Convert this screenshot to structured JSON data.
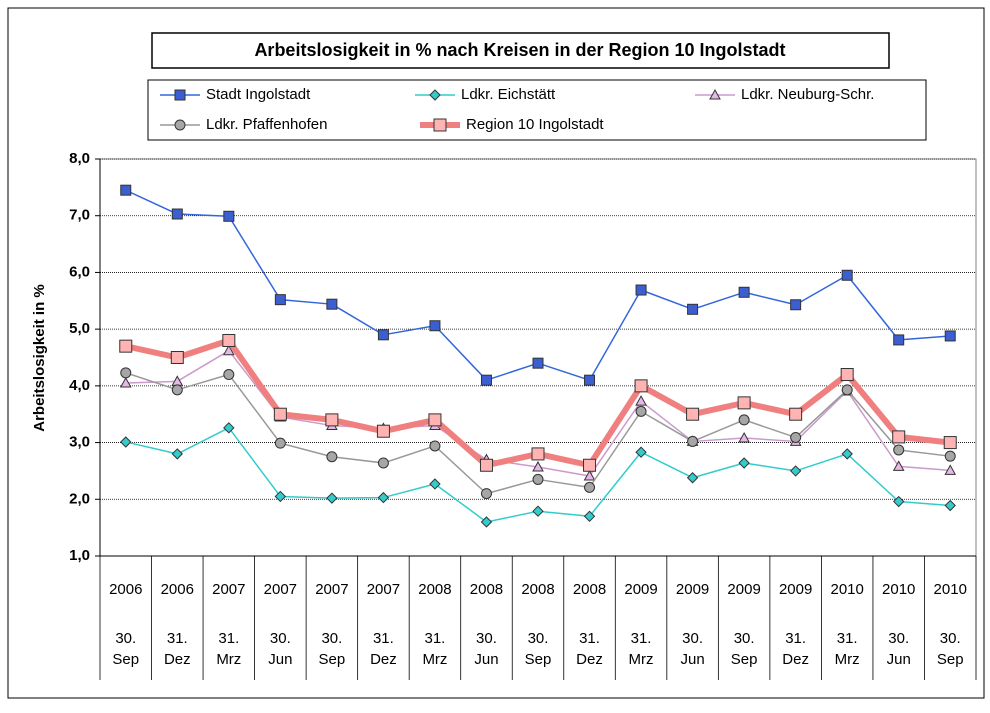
{
  "chart_data": {
    "type": "line",
    "title": "Arbeitslosigkeit in % nach Kreisen in der Region 10 Ingolstadt",
    "y_label": "Arbeitslosigkeit in %",
    "categories": [
      [
        "2006",
        "30.",
        "Sep"
      ],
      [
        "2006",
        "31.",
        "Dez"
      ],
      [
        "2007",
        "31.",
        "Mrz"
      ],
      [
        "2007",
        "30.",
        "Jun"
      ],
      [
        "2007",
        "30.",
        "Sep"
      ],
      [
        "2007",
        "31.",
        "Dez"
      ],
      [
        "2008",
        "31.",
        "Mrz"
      ],
      [
        "2008",
        "30.",
        "Jun"
      ],
      [
        "2008",
        "30.",
        "Sep"
      ],
      [
        "2008",
        "31.",
        "Dez"
      ],
      [
        "2009",
        "31.",
        "Mrz"
      ],
      [
        "2009",
        "30.",
        "Jun"
      ],
      [
        "2009",
        "30.",
        "Sep"
      ],
      [
        "2009",
        "31.",
        "Dez"
      ],
      [
        "2010",
        "31.",
        "Mrz"
      ],
      [
        "2010",
        "30.",
        "Jun"
      ],
      [
        "2010",
        "30.",
        "Sep"
      ]
    ],
    "ylim": [
      1,
      8
    ],
    "yticks": [
      {
        "value": 1,
        "label": "1,0"
      },
      {
        "value": 2,
        "label": "2,0"
      },
      {
        "value": 3,
        "label": "3,0"
      },
      {
        "value": 4,
        "label": "4,0"
      },
      {
        "value": 5,
        "label": "5,0"
      },
      {
        "value": 6,
        "label": "6,0"
      },
      {
        "value": 7,
        "label": "7,0"
      },
      {
        "value": 8,
        "label": "8,0"
      }
    ],
    "grid": true,
    "series": [
      {
        "name": "Stadt Ingolstadt",
        "color": "#3366dd",
        "marker": "square",
        "marker_fill": "#3b5fd0",
        "line_width": 1.5,
        "values": [
          7.45,
          7.03,
          6.99,
          5.52,
          5.44,
          4.9,
          5.06,
          4.1,
          4.4,
          4.1,
          5.69,
          5.35,
          5.65,
          5.43,
          5.95,
          4.81,
          4.88
        ]
      },
      {
        "name": "Ldkr. Eichstätt",
        "color": "#33cccc",
        "marker": "diamond",
        "marker_fill": "#33cccc",
        "line_width": 1.5,
        "values": [
          3.01,
          2.8,
          3.26,
          2.05,
          2.02,
          2.03,
          2.27,
          1.6,
          1.79,
          1.7,
          2.83,
          2.38,
          2.64,
          2.5,
          2.8,
          1.96,
          1.89
        ]
      },
      {
        "name": "Ldkr. Neuburg-Schr.",
        "color": "#cc99cc",
        "marker": "triangle",
        "marker_fill": "#e6b8e6",
        "line_width": 1.5,
        "values": [
          4.05,
          4.08,
          4.62,
          3.45,
          3.3,
          3.25,
          3.3,
          2.7,
          2.57,
          2.41,
          3.73,
          3.02,
          3.08,
          3.02,
          3.91,
          2.58,
          2.51
        ]
      },
      {
        "name": "Ldkr. Pfaffenhofen",
        "color": "#999999",
        "marker": "circle",
        "marker_fill": "#a6a6a6",
        "line_width": 1.5,
        "values": [
          4.23,
          3.93,
          4.2,
          2.99,
          2.75,
          2.64,
          2.94,
          2.1,
          2.35,
          2.21,
          3.55,
          3.02,
          3.4,
          3.09,
          3.93,
          2.87,
          2.76
        ]
      },
      {
        "name": "Region 10 Ingolstadt",
        "color": "#f08080",
        "marker": "square",
        "marker_fill": "#ffb3b3",
        "line_width": 6,
        "values": [
          4.7,
          4.5,
          4.8,
          3.5,
          3.4,
          3.2,
          3.4,
          2.6,
          2.8,
          2.6,
          4.0,
          3.5,
          3.7,
          3.5,
          4.2,
          3.1,
          3.0
        ]
      }
    ]
  }
}
